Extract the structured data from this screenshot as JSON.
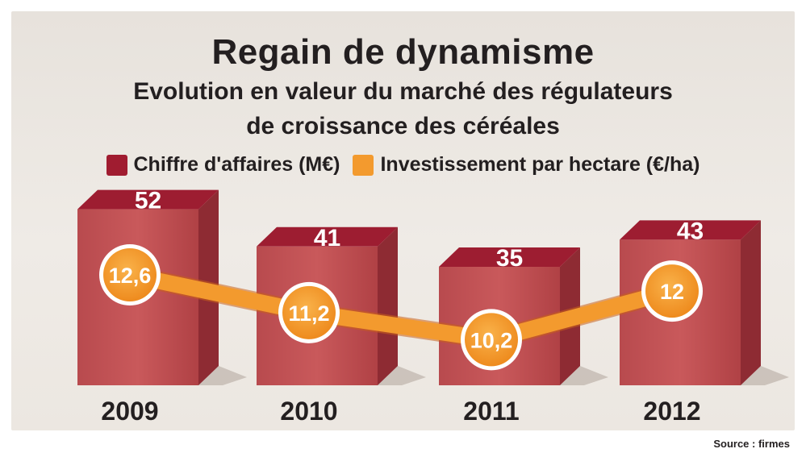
{
  "chart_data": {
    "type": "bar",
    "title": "Regain de dynamisme",
    "subtitle": [
      "Evolution en valeur du marché des régulateurs",
      "de croissance des céréales"
    ],
    "categories": [
      "2009",
      "2010",
      "2011",
      "2012"
    ],
    "series": [
      {
        "name": "Chiffre d'affaires (M€)",
        "type": "bar",
        "values": [
          52,
          41,
          35,
          43
        ],
        "labels": [
          "52",
          "41",
          "35",
          "43"
        ],
        "color": "#a01c30"
      },
      {
        "name": "Investissement par hectare (€/ha)",
        "type": "line",
        "values": [
          12.6,
          11.2,
          10.2,
          12
        ],
        "labels": [
          "12,6",
          "11,2",
          "10,2",
          "12"
        ],
        "color": "#f39a2e"
      }
    ],
    "legend_position": "top-center",
    "grid": false,
    "source": "Source : firmes"
  }
}
